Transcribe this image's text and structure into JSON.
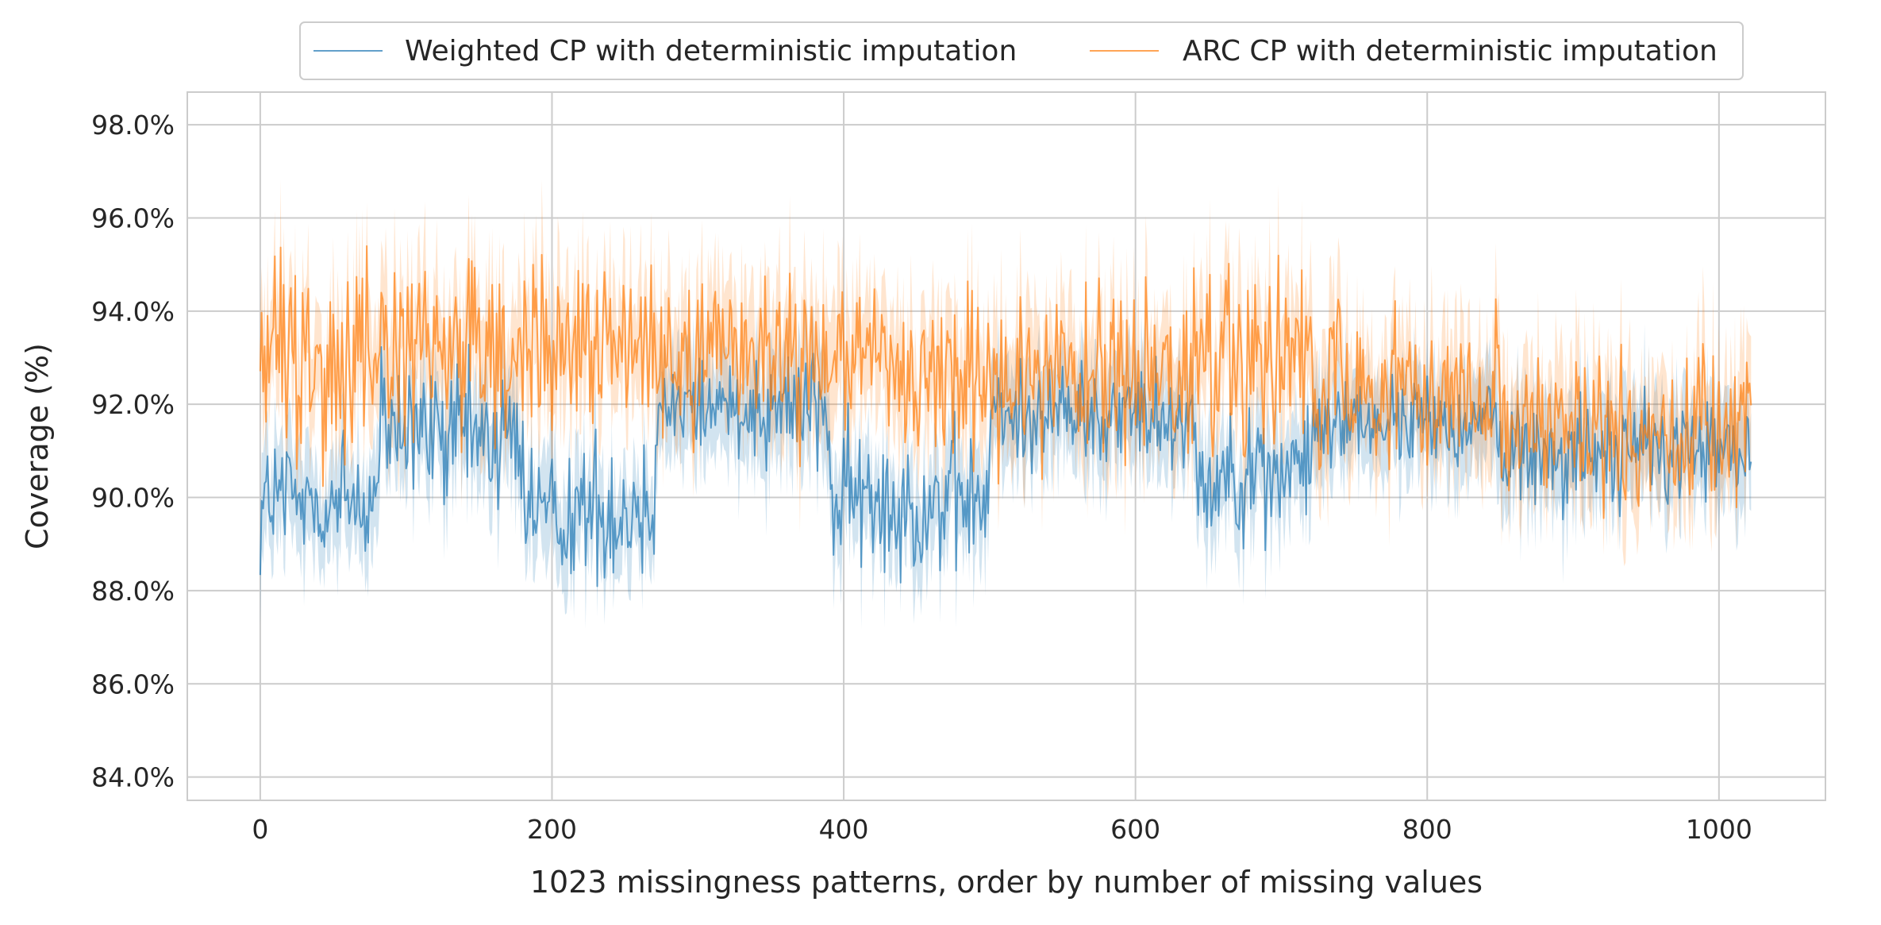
{
  "chart_data": {
    "type": "line",
    "xlabel": "1023 missingness patterns, order by number of missing values",
    "ylabel": "Coverage (%)",
    "xlim": [
      -50,
      1073
    ],
    "ylim": [
      83.5,
      98.7
    ],
    "xticks": [
      0,
      200,
      400,
      600,
      800,
      1000
    ],
    "xtick_labels": [
      "0",
      "200",
      "400",
      "600",
      "800",
      "1000"
    ],
    "yticks": [
      84,
      86,
      88,
      90,
      92,
      94,
      96,
      98
    ],
    "ytick_labels": [
      "84.0%",
      "86.0%",
      "88.0%",
      "90.0%",
      "92.0%",
      "94.0%",
      "96.0%",
      "98.0%"
    ],
    "grid": true,
    "legend": {
      "placement": "top-center, above plot",
      "columns": 2
    },
    "x_range": [
      0,
      1022
    ],
    "n_points": 1023,
    "band": "shaded confidence interval around each series",
    "series": [
      {
        "name": "Weighted CP with deterministic imputation",
        "color": "#1f77b4",
        "segments": [
          {
            "x_from": 0,
            "x_to": 80,
            "mean": 89.9,
            "amplitude": 1.7
          },
          {
            "x_from": 80,
            "x_to": 180,
            "mean": 91.3,
            "amplitude": 1.6
          },
          {
            "x_from": 180,
            "x_to": 270,
            "mean": 89.7,
            "amplitude": 1.5
          },
          {
            "x_from": 270,
            "x_to": 390,
            "mean": 92.0,
            "amplitude": 1.2
          },
          {
            "x_from": 390,
            "x_to": 500,
            "mean": 89.9,
            "amplitude": 1.6
          },
          {
            "x_from": 500,
            "x_to": 640,
            "mean": 91.8,
            "amplitude": 1.1
          },
          {
            "x_from": 640,
            "x_to": 720,
            "mean": 90.5,
            "amplitude": 1.3
          },
          {
            "x_from": 720,
            "x_to": 850,
            "mean": 91.6,
            "amplitude": 0.9
          },
          {
            "x_from": 850,
            "x_to": 1022,
            "mean": 91.0,
            "amplitude": 1.2
          }
        ],
        "ci_halfwidth": 1.0
      },
      {
        "name": "ARC CP with deterministic imputation",
        "color": "#ff7f0e",
        "segments": [
          {
            "x_from": 0,
            "x_to": 180,
            "mean": 93.0,
            "amplitude": 2.2
          },
          {
            "x_from": 180,
            "x_to": 390,
            "mean": 93.2,
            "amplitude": 1.9
          },
          {
            "x_from": 390,
            "x_to": 640,
            "mean": 92.6,
            "amplitude": 1.9
          },
          {
            "x_from": 640,
            "x_to": 720,
            "mean": 92.7,
            "amplitude": 2.0
          },
          {
            "x_from": 720,
            "x_to": 850,
            "mean": 92.3,
            "amplitude": 1.6
          },
          {
            "x_from": 850,
            "x_to": 1022,
            "mean": 91.4,
            "amplitude": 1.6
          }
        ],
        "ci_halfwidth": 1.2
      }
    ]
  }
}
